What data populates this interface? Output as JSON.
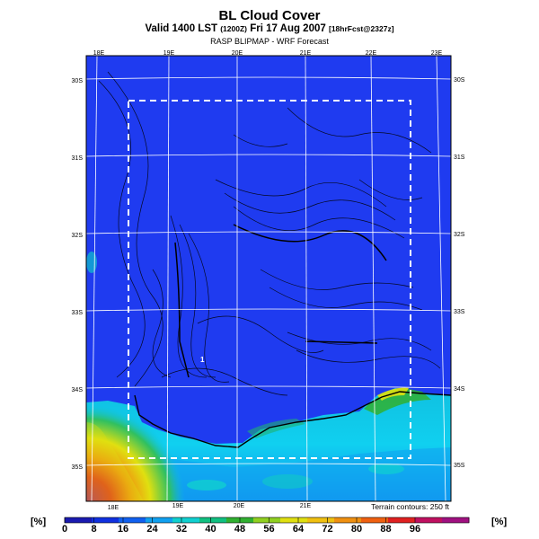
{
  "header": {
    "title": "BL Cloud Cover",
    "subtitle_main": "Valid 1400 LST",
    "subtitle_utc": "(1200Z)",
    "subtitle_date": "Fri 17 Aug 2007",
    "subtitle_fcst": "[18hrFcst@2327z]",
    "source": "RASP BLIPMAP - WRF Forecast"
  },
  "map": {
    "top_lon_labels": [
      "18E",
      "19E",
      "20E",
      "21E",
      "22E",
      "23E"
    ],
    "bottom_lon_labels": [
      "18E",
      "19E",
      "20E",
      "21E"
    ],
    "lat_labels_left": [
      "30S",
      "31S",
      "32S",
      "33S",
      "34S",
      "35S"
    ],
    "lat_labels_right": [
      "30S",
      "31S",
      "32S",
      "33S",
      "34S",
      "35S"
    ],
    "point_marker": "1",
    "terrain_note": "Terrain contours: 250 ft"
  },
  "colorbar": {
    "unit_left": "[%]",
    "unit_right": "[%]",
    "ticks": [
      "0",
      "8",
      "16",
      "24",
      "32",
      "40",
      "48",
      "56",
      "64",
      "72",
      "80",
      "88",
      "96"
    ],
    "colors": [
      "#1a1ab0",
      "#1030e0",
      "#1060f0",
      "#10a0f0",
      "#10d0d0",
      "#10c080",
      "#30b030",
      "#90d020",
      "#e0e010",
      "#f0c010",
      "#f09010",
      "#f06010",
      "#e02020",
      "#c01060",
      "#a01080"
    ]
  }
}
